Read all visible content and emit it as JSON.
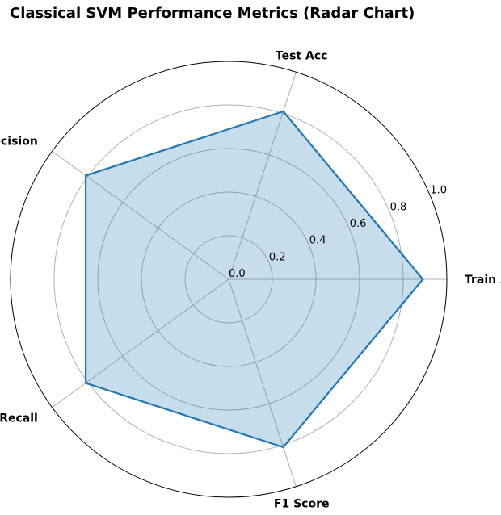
{
  "chart_data": {
    "type": "radar",
    "title": "Classical SVM Performance Metrics (Radar Chart)",
    "categories": [
      "Train Acc",
      "Test Acc",
      "Precision",
      "Recall",
      "F1 Score"
    ],
    "values": [
      0.89,
      0.81,
      0.81,
      0.81,
      0.81
    ],
    "radial_ticks": [
      "0.0",
      "0.2",
      "0.4",
      "0.6",
      "0.8",
      "1.0"
    ],
    "radial_tick_values": [
      0.0,
      0.2,
      0.4,
      0.6,
      0.8,
      1.0
    ],
    "rlim": [
      0,
      1.0
    ],
    "grid": true,
    "colors": {
      "line": "#1f77b4",
      "fill": "#1f77b4",
      "grid": "#b0b0b0",
      "frame": "#000000"
    }
  }
}
